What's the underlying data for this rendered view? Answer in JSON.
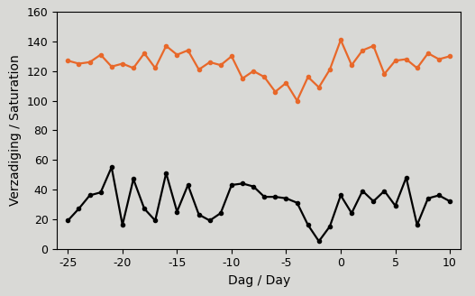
{
  "chart_data": {
    "type": "line",
    "xlabel": "Dag / Day",
    "ylabel": "Verzadiging / Saturation",
    "x": [
      -25,
      -24,
      -23,
      -22,
      -21,
      -20,
      -19,
      -18,
      -17,
      -16,
      -15,
      -14,
      -13,
      -12,
      -11,
      -10,
      -9,
      -8,
      -7,
      -6,
      -5,
      -4,
      -3,
      -2,
      -1,
      0,
      1,
      2,
      3,
      4,
      5,
      6,
      7,
      8,
      9,
      10
    ],
    "series": [
      {
        "color": "#e8682a",
        "marker": "o",
        "line_style": "solid",
        "values": [
          127,
          125,
          126,
          131,
          123,
          125,
          122,
          132,
          122,
          137,
          131,
          134,
          121,
          126,
          124,
          130,
          115,
          120,
          116,
          106,
          112,
          100,
          116,
          109,
          121,
          141,
          124,
          134,
          137,
          118,
          127,
          128,
          122,
          132,
          128,
          130
        ]
      },
      {
        "color": "#000000",
        "marker": "o",
        "line_style": "solid",
        "values": [
          19,
          27,
          36,
          38,
          55,
          16,
          47,
          27,
          19,
          51,
          25,
          43,
          23,
          19,
          24,
          43,
          44,
          42,
          35,
          35,
          34,
          31,
          16,
          5,
          15,
          36,
          24,
          39,
          32,
          39,
          29,
          48,
          16,
          34,
          36,
          32
        ]
      }
    ],
    "xlim": [
      -26,
      11
    ],
    "xticks": [
      -25,
      -20,
      -15,
      -10,
      -5,
      0,
      5,
      10
    ],
    "ylim": [
      0,
      160
    ],
    "yticks": [
      0,
      20,
      40,
      60,
      80,
      100,
      120,
      140,
      160
    ],
    "grid": false
  }
}
